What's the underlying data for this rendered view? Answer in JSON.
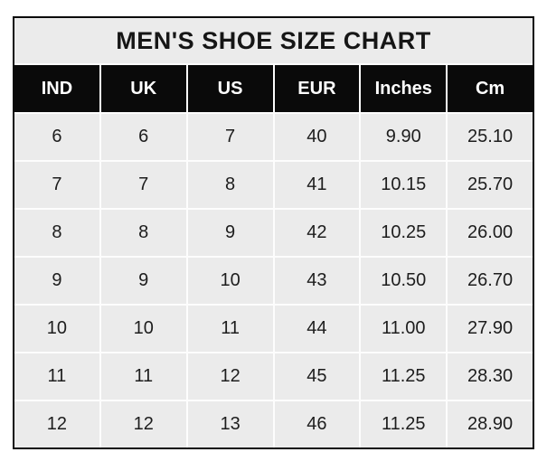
{
  "title": "MEN'S SHOE SIZE CHART",
  "columns": [
    "IND",
    "UK",
    "US",
    "EUR",
    "Inches",
    "Cm"
  ],
  "rows": [
    [
      "6",
      "6",
      "7",
      "40",
      "9.90",
      "25.10"
    ],
    [
      "7",
      "7",
      "8",
      "41",
      "10.15",
      "25.70"
    ],
    [
      "8",
      "8",
      "9",
      "42",
      "10.25",
      "26.00"
    ],
    [
      "9",
      "9",
      "10",
      "43",
      "10.50",
      "26.70"
    ],
    [
      "10",
      "10",
      "11",
      "44",
      "11.00",
      "27.90"
    ],
    [
      "11",
      "11",
      "12",
      "45",
      "11.25",
      "28.30"
    ],
    [
      "12",
      "12",
      "13",
      "46",
      "11.25",
      "28.90"
    ]
  ],
  "colors": {
    "page_bg": "#ffffff",
    "border": "#0b0b0b",
    "title_bg": "#ebebeb",
    "title_text": "#161616",
    "header_bg": "#0a0a0a",
    "header_text": "#ffffff",
    "cell_bg": "#ebebeb",
    "cell_text": "#1d1d1d",
    "grid_line": "#fdfdfd"
  },
  "chart_data": {
    "type": "table",
    "title": "MEN'S SHOE SIZE CHART",
    "columns": [
      "IND",
      "UK",
      "US",
      "EUR",
      "Inches",
      "Cm"
    ],
    "rows": [
      [
        "6",
        "6",
        "7",
        "40",
        "9.90",
        "25.10"
      ],
      [
        "7",
        "7",
        "8",
        "41",
        "10.15",
        "25.70"
      ],
      [
        "8",
        "8",
        "9",
        "42",
        "10.25",
        "26.00"
      ],
      [
        "9",
        "9",
        "10",
        "43",
        "10.50",
        "26.70"
      ],
      [
        "10",
        "10",
        "11",
        "44",
        "11.00",
        "27.90"
      ],
      [
        "11",
        "11",
        "12",
        "45",
        "11.25",
        "28.30"
      ],
      [
        "12",
        "12",
        "13",
        "46",
        "11.25",
        "28.90"
      ]
    ],
    "layout": {
      "grid": true,
      "header_style": "black-background-white-text",
      "title_position": "top-center"
    }
  }
}
